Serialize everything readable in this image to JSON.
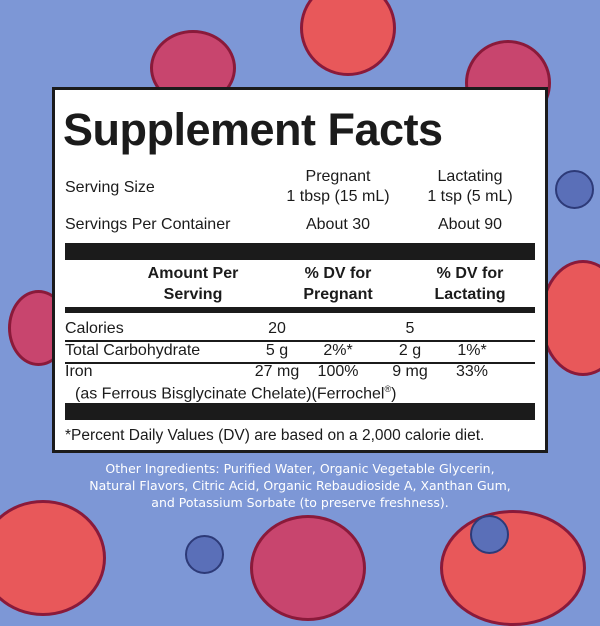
{
  "title": "Supplement Facts",
  "serving_size": {
    "label": "Serving Size",
    "pregnant_group": "Pregnant",
    "pregnant": "1 tbsp (15 mL)",
    "lactating_group": "Lactating",
    "lactating": "1 tsp (5 mL)"
  },
  "servings_per_container": {
    "label": "Servings Per Container",
    "pregnant": "About 30",
    "lactating": "About 90"
  },
  "headers": {
    "amount_1": "Amount Per",
    "amount_2": "Serving",
    "dv_preg_1": "% DV for",
    "dv_preg_2": "Pregnant",
    "dv_lact_1": "% DV for",
    "dv_lact_2": "Lactating"
  },
  "rows": [
    {
      "name": "Calories",
      "preg_amount": "20",
      "preg_dv": "",
      "lact_amount": "5",
      "lact_dv": ""
    },
    {
      "name": "Total Carbohydrate",
      "preg_amount": "5 g",
      "preg_dv": "2%*",
      "lact_amount": "2 g",
      "lact_dv": "1%*"
    },
    {
      "name": "Iron",
      "preg_amount": "27 mg",
      "preg_dv": "100%",
      "lact_amount": "9 mg",
      "lact_dv": "33%"
    }
  ],
  "iron_source": "(as Ferrous Bisglycinate Chelate)(Ferrochel",
  "iron_source_mark": "®",
  "iron_source_end": ")",
  "footnote": "*Percent Daily Values (DV) are based on a 2,000 calorie diet.",
  "other_ingredients": [
    "Other Ingredients: Purified Water, Organic Vegetable Glycerin,",
    "Natural Flavors, Citric Acid, Organic Rebaudioside A, Xanthan Gum,",
    "and Potassium Sorbate (to preserve freshness)."
  ],
  "colors": {
    "background": "#7d97d6",
    "strawberry": "#e8585a",
    "raspberry": "#c8456e",
    "blueberry": "#5a6fb8"
  }
}
